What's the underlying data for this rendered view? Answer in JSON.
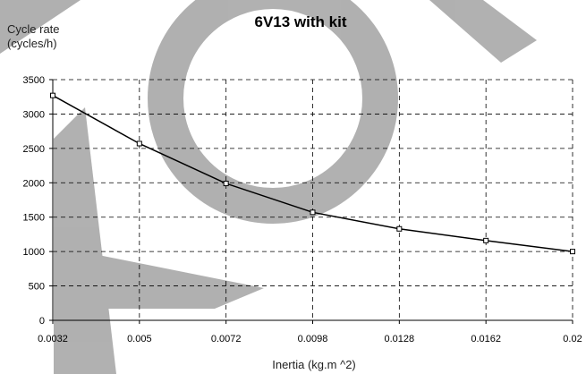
{
  "chart_data": {
    "type": "line",
    "title": "6V13 with kit",
    "ylabel_line1": "Cycle rate",
    "ylabel_line2": "(cycles/h)",
    "xlabel": "Inertia (kg.m ^2)",
    "x_ticks": [
      "0.0032",
      "0.005",
      "0.0072",
      "0.0098",
      "0.0128",
      "0.0162",
      "0.02"
    ],
    "y_ticks": [
      "0",
      "500",
      "1000",
      "1500",
      "2000",
      "2500",
      "3000",
      "3500"
    ],
    "ylim": [
      0,
      3500
    ],
    "x_scale": "categorical",
    "grid": true,
    "legend": "none",
    "series": [
      {
        "x": [
          "0.0032",
          "0.005",
          "0.0072",
          "0.0098",
          "0.0128",
          "0.0162",
          "0.02"
        ],
        "values": [
          3270,
          2570,
          1990,
          1570,
          1330,
          1160,
          1000
        ],
        "color": "#000000",
        "marker": "open-square"
      }
    ],
    "watermark_color": "#aaaaaa"
  }
}
